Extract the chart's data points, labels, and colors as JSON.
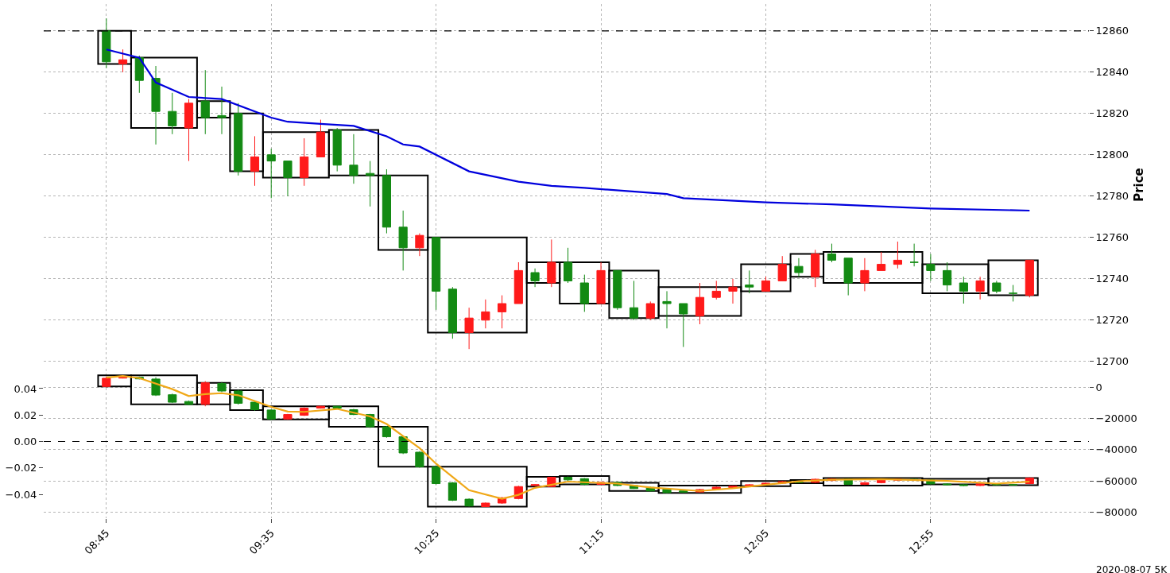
{
  "chart_data": [
    {
      "type": "candlestick",
      "y2label": "Price",
      "tick_labels": "y",
      "grid": true,
      "xlim": [
        "2020-08-07T08:26",
        "2020-08-07T13:43"
      ],
      "xticks": [
        {
          "value": "2020-08-07T08:45",
          "label": null
        },
        {
          "value": "2020-08-07T09:35",
          "label": null
        },
        {
          "value": "2020-08-07T10:25",
          "label": null
        },
        {
          "value": "2020-08-07T11:15",
          "label": null
        },
        {
          "value": "2020-08-07T12:05",
          "label": null
        },
        {
          "value": "2020-08-07T12:55",
          "label": null
        }
      ],
      "y2lim": [
        12698,
        12873
      ],
      "y2ticks": [
        12700,
        12720,
        12740,
        12760,
        12780,
        12800,
        12820,
        12840,
        12860
      ],
      "x": [
        "2020-08-07T08:45",
        "2020-08-07T08:50",
        "2020-08-07T08:55",
        "2020-08-07T09:00",
        "2020-08-07T09:05",
        "2020-08-07T09:10",
        "2020-08-07T09:15",
        "2020-08-07T09:20",
        "2020-08-07T09:25",
        "2020-08-07T09:30",
        "2020-08-07T09:35",
        "2020-08-07T09:40",
        "2020-08-07T09:45",
        "2020-08-07T09:50",
        "2020-08-07T09:55",
        "2020-08-07T10:00",
        "2020-08-07T10:05",
        "2020-08-07T10:10",
        "2020-08-07T10:15",
        "2020-08-07T10:20",
        "2020-08-07T10:25",
        "2020-08-07T10:30",
        "2020-08-07T10:35",
        "2020-08-07T10:40",
        "2020-08-07T10:45",
        "2020-08-07T10:50",
        "2020-08-07T10:55",
        "2020-08-07T11:00",
        "2020-08-07T11:05",
        "2020-08-07T11:10",
        "2020-08-07T11:15",
        "2020-08-07T11:20",
        "2020-08-07T11:25",
        "2020-08-07T11:30",
        "2020-08-07T11:35",
        "2020-08-07T11:40",
        "2020-08-07T11:45",
        "2020-08-07T11:50",
        "2020-08-07T11:55",
        "2020-08-07T12:00",
        "2020-08-07T12:05",
        "2020-08-07T12:10",
        "2020-08-07T12:15",
        "2020-08-07T12:20",
        "2020-08-07T12:25",
        "2020-08-07T12:30",
        "2020-08-07T12:35",
        "2020-08-07T12:40",
        "2020-08-07T12:45",
        "2020-08-07T12:50",
        "2020-08-07T12:55",
        "2020-08-07T13:00",
        "2020-08-07T13:05",
        "2020-08-07T13:10",
        "2020-08-07T13:15",
        "2020-08-07T13:20",
        "2020-08-07T13:25"
      ],
      "series": [
        {
          "type": "bar",
          "axis": "y2",
          "color": "#000000",
          "x": [
            "2020-08-07T08:47:30",
            "2020-08-07T09:02:30",
            "2020-08-07T09:17:30",
            "2020-08-07T09:27:30",
            "2020-08-07T09:42:30",
            "2020-08-07T10:00",
            "2020-08-07T10:15",
            "2020-08-07T10:37:30",
            "2020-08-07T10:57:30",
            "2020-08-07T11:10",
            "2020-08-07T11:25",
            "2020-08-07T11:45",
            "2020-08-07T12:05",
            "2020-08-07T12:17:30",
            "2020-08-07T12:37:30",
            "2020-08-07T13:02:30",
            "2020-08-07T13:20"
          ],
          "base": [
            12844,
            12813,
            12818,
            12792,
            12789,
            12790,
            12754,
            12714,
            12738,
            12728,
            12721,
            12722,
            12734,
            12741,
            12738,
            12733,
            12732
          ],
          "values": [
            16,
            34,
            8,
            28,
            22,
            22,
            36,
            46,
            10,
            20,
            23,
            14,
            13,
            11,
            15,
            14,
            17
          ]
        },
        {
          "axis": "y2",
          "colors": [
            "#138a13",
            "#ff1a1a",
            "#138a13",
            "#138a13",
            "#138a13",
            "#ff1a1a",
            "#138a13",
            "#138a13",
            "#138a13",
            "#ff1a1a",
            "#138a13",
            "#138a13",
            "#ff1a1a",
            "#ff1a1a",
            "#138a13",
            "#138a13",
            "#138a13",
            "#138a13",
            "#138a13",
            "#ff1a1a",
            "#138a13",
            "#138a13",
            "#ff1a1a",
            "#ff1a1a",
            "#ff1a1a",
            "#ff1a1a",
            "#138a13",
            "#ff1a1a",
            "#138a13",
            "#138a13",
            "#ff1a1a",
            "#138a13",
            "#138a13",
            "#ff1a1a",
            "#138a13",
            "#138a13",
            "#ff1a1a",
            "#ff1a1a",
            "#ff1a1a",
            "#138a13",
            "#ff1a1a",
            "#ff1a1a",
            "#138a13",
            "#ff1a1a",
            "#138a13",
            "#138a13",
            "#ff1a1a",
            "#ff1a1a",
            "#ff1a1a",
            "#138a13",
            "#138a13",
            "#138a13",
            "#138a13",
            "#ff1a1a",
            "#138a13",
            "#138a13",
            "#ff1a1a"
          ],
          "ohlc": [
            [
              12860,
              12866,
              12842,
              12845
            ],
            [
              12844,
              12851,
              12840,
              12846
            ],
            [
              12847,
              12848,
              12830,
              12836
            ],
            [
              12837,
              12843,
              12805,
              12821
            ],
            [
              12821,
              12830,
              12810,
              12814
            ],
            [
              12813,
              12827,
              12797,
              12825
            ],
            [
              12826,
              12841,
              12810,
              12818
            ],
            [
              12819,
              12833,
              12810,
              12818
            ],
            [
              12820,
              12825,
              12790,
              12792
            ],
            [
              12792,
              12809,
              12785,
              12799
            ],
            [
              12800,
              12803,
              12779,
              12797
            ],
            [
              12797,
              12797,
              12780,
              12789
            ],
            [
              12789,
              12808,
              12785,
              12799
            ],
            [
              12799,
              12817,
              12799,
              12811
            ],
            [
              12812,
              12813,
              12792,
              12795
            ],
            [
              12795,
              12810,
              12786,
              12790
            ],
            [
              12791,
              12797,
              12775,
              12790
            ],
            [
              12790,
              12793,
              12762,
              12765
            ],
            [
              12765,
              12773,
              12744,
              12755
            ],
            [
              12755,
              12762,
              12751,
              12761
            ],
            [
              12760,
              12760,
              12725,
              12734
            ],
            [
              12735,
              12736,
              12711,
              12714
            ],
            [
              12714,
              12726,
              12706,
              12721
            ],
            [
              12720,
              12730,
              12716,
              12724
            ],
            [
              12724,
              12732,
              12716,
              12728
            ],
            [
              12728,
              12748,
              12728,
              12744
            ],
            [
              12743,
              12745,
              12736,
              12739
            ],
            [
              12738,
              12759,
              12736,
              12748
            ],
            [
              12748,
              12755,
              12738,
              12739
            ],
            [
              12738,
              12742,
              12724,
              12728
            ],
            [
              12728,
              12748,
              12728,
              12744
            ],
            [
              12744,
              12744,
              12725,
              12726
            ],
            [
              12726,
              12739,
              12720,
              12721
            ],
            [
              12721,
              12729,
              12720,
              12728
            ],
            [
              12729,
              12734,
              12716,
              12728
            ],
            [
              12728,
              12728,
              12707,
              12723
            ],
            [
              12722,
              12738,
              12718,
              12731
            ],
            [
              12731,
              12739,
              12730,
              12734
            ],
            [
              12734,
              12740,
              12728,
              12736
            ],
            [
              12737,
              12744,
              12733,
              12736
            ],
            [
              12734,
              12741,
              12734,
              12739
            ],
            [
              12739,
              12751,
              12739,
              12747
            ],
            [
              12746,
              12750,
              12741,
              12743
            ],
            [
              12741,
              12754,
              12736,
              12752
            ],
            [
              12752,
              12757,
              12748,
              12749
            ],
            [
              12750,
              12750,
              12732,
              12738
            ],
            [
              12738,
              12750,
              12734,
              12744
            ],
            [
              12744,
              12753,
              12744,
              12747
            ],
            [
              12747,
              12758,
              12745,
              12749
            ],
            [
              12748,
              12757,
              12746,
              12748
            ],
            [
              12747,
              12752,
              12739,
              12744
            ],
            [
              12744,
              12748,
              12734,
              12737
            ],
            [
              12738,
              12741,
              12728,
              12734
            ],
            [
              12734,
              12741,
              12730,
              12739
            ],
            [
              12738,
              12739,
              12733,
              12734
            ],
            [
              12733,
              12737,
              12729,
              12733
            ],
            [
              12732,
              12749,
              12731,
              12749
            ]
          ]
        },
        {
          "type": "line",
          "axis": "y2",
          "color": "#0000dd",
          "x": [
            "2020-08-07T08:45",
            "2020-08-07T08:55",
            "2020-08-07T09:00",
            "2020-08-07T09:10",
            "2020-08-07T09:20",
            "2020-08-07T09:35",
            "2020-08-07T09:40",
            "2020-08-07T09:50",
            "2020-08-07T10:00",
            "2020-08-07T10:10",
            "2020-08-07T10:15",
            "2020-08-07T10:20",
            "2020-08-07T10:35",
            "2020-08-07T10:50",
            "2020-08-07T11:00",
            "2020-08-07T11:10",
            "2020-08-07T11:35",
            "2020-08-07T11:40",
            "2020-08-07T12:05",
            "2020-08-07T12:25",
            "2020-08-07T12:55",
            "2020-08-07T13:25"
          ],
          "values": [
            12851,
            12847,
            12835,
            12828,
            12827,
            12818,
            12816,
            12815,
            12814,
            12809,
            12805,
            12804,
            12792,
            12787,
            12785,
            12784,
            12781,
            12779,
            12777,
            12776,
            12774,
            12773
          ]
        }
      ],
      "ref_lines": [
        {
          "axis": "y2",
          "value": 12860,
          "color": "#000000",
          "line_style": "dashed"
        }
      ]
    },
    {
      "type": "candlestick",
      "grid": true,
      "xlim": [
        "2020-08-07T08:26",
        "2020-08-07T13:43"
      ],
      "xticks": [
        {
          "value": "2020-08-07T08:45",
          "label": "08:45"
        },
        {
          "value": "2020-08-07T09:35",
          "label": "09:35"
        },
        {
          "value": "2020-08-07T10:25",
          "label": "10:25"
        },
        {
          "value": "2020-08-07T11:15",
          "label": "11:15"
        },
        {
          "value": "2020-08-07T12:05",
          "label": "12:05"
        },
        {
          "value": "2020-08-07T12:55",
          "label": "12:55"
        }
      ],
      "ylim": [
        -0.058,
        0.055
      ],
      "yticks": [
        {
          "value": -0.04,
          "label": "−0.04"
        },
        {
          "value": -0.02,
          "label": "−0.02"
        },
        {
          "value": 0,
          "label": "0.00"
        },
        0.02,
        0.04
      ],
      "y2lim": [
        -84000,
        12000
      ],
      "y2ticks": [
        {
          "value": -80000,
          "label": "−80000"
        },
        {
          "value": -60000,
          "label": "−60000"
        },
        {
          "value": -40000,
          "label": "−40000"
        },
        {
          "value": -20000,
          "label": "−20000"
        },
        0
      ],
      "annotations": [
        "2020-08-07 5K"
      ],
      "x": [
        "2020-08-07T08:45",
        "2020-08-07T08:50",
        "2020-08-07T08:55",
        "2020-08-07T09:00",
        "2020-08-07T09:05",
        "2020-08-07T09:10",
        "2020-08-07T09:15",
        "2020-08-07T09:20",
        "2020-08-07T09:25",
        "2020-08-07T09:30",
        "2020-08-07T09:35",
        "2020-08-07T09:40",
        "2020-08-07T09:45",
        "2020-08-07T09:50",
        "2020-08-07T09:55",
        "2020-08-07T10:00",
        "2020-08-07T10:05",
        "2020-08-07T10:10",
        "2020-08-07T10:15",
        "2020-08-07T10:20",
        "2020-08-07T10:25",
        "2020-08-07T10:30",
        "2020-08-07T10:35",
        "2020-08-07T10:40",
        "2020-08-07T10:45",
        "2020-08-07T10:50",
        "2020-08-07T10:55",
        "2020-08-07T11:00",
        "2020-08-07T11:05",
        "2020-08-07T11:10",
        "2020-08-07T11:15",
        "2020-08-07T11:20",
        "2020-08-07T11:25",
        "2020-08-07T11:30",
        "2020-08-07T11:35",
        "2020-08-07T11:40",
        "2020-08-07T11:45",
        "2020-08-07T11:50",
        "2020-08-07T11:55",
        "2020-08-07T12:00",
        "2020-08-07T12:05",
        "2020-08-07T12:10",
        "2020-08-07T12:15",
        "2020-08-07T12:20",
        "2020-08-07T12:25",
        "2020-08-07T12:30",
        "2020-08-07T12:35",
        "2020-08-07T12:40",
        "2020-08-07T12:45",
        "2020-08-07T12:50",
        "2020-08-07T12:55",
        "2020-08-07T13:00",
        "2020-08-07T13:05",
        "2020-08-07T13:10",
        "2020-08-07T13:15",
        "2020-08-07T13:20",
        "2020-08-07T13:25"
      ],
      "series": [
        {
          "type": "bar",
          "axis": "y2",
          "color": "#000000",
          "x": [
            "2020-08-07T08:47:30",
            "2020-08-07T09:02:30",
            "2020-08-07T09:17:30",
            "2020-08-07T09:27:30",
            "2020-08-07T09:42:30",
            "2020-08-07T10:00",
            "2020-08-07T10:15",
            "2020-08-07T10:37:30",
            "2020-08-07T10:57:30",
            "2020-08-07T11:10",
            "2020-08-07T11:25",
            "2020-08-07T11:45",
            "2020-08-07T12:05",
            "2020-08-07T12:17:30",
            "2020-08-07T12:37:30",
            "2020-08-07T13:02:30",
            "2020-08-07T13:20"
          ],
          "base": [
            600,
            -10900,
            -10900,
            -14500,
            -20500,
            -25300,
            -51000,
            -76600,
            -63700,
            -62300,
            -66500,
            -67800,
            -63500,
            -61500,
            -63000,
            -62300,
            -62800
          ],
          "values": [
            7200,
            18700,
            13900,
            12700,
            8400,
            13200,
            25700,
            25600,
            6300,
            5400,
            5200,
            4800,
            3400,
            2000,
            4800,
            3600,
            4600
          ]
        },
        {
          "axis": "y2",
          "colors": [
            "#ff1a1a",
            "#ff1a1a",
            "#138a13",
            "#138a13",
            "#138a13",
            "#138a13",
            "#ff1a1a",
            "#138a13",
            "#138a13",
            "#138a13",
            "#138a13",
            "#ff1a1a",
            "#ff1a1a",
            "#ff1a1a",
            "#138a13",
            "#138a13",
            "#138a13",
            "#138a13",
            "#138a13",
            "#138a13",
            "#138a13",
            "#138a13",
            "#138a13",
            "#ff1a1a",
            "#ff1a1a",
            "#ff1a1a",
            "#ff1a1a",
            "#ff1a1a",
            "#138a13",
            "#138a13",
            "#ff1a1a",
            "#138a13",
            "#138a13",
            "#138a13",
            "#138a13",
            "#138a13",
            "#ff1a1a",
            "#ff1a1a",
            "#ff1a1a",
            "#ff1a1a",
            "#ff1a1a",
            "#ff1a1a",
            "#138a13",
            "#ff1a1a",
            "#ff1a1a",
            "#138a13",
            "#ff1a1a",
            "#ff1a1a",
            "#ff1a1a",
            "#138a13",
            "#138a13",
            "#138a13",
            "#138a13",
            "#ff1a1a",
            "#138a13",
            "#138a13",
            "#ff1a1a"
          ],
          "ohlc": [
            [
              600,
              7000,
              0,
              5900
            ],
            [
              6000,
              7000,
              5800,
              6500
            ],
            [
              6500,
              7000,
              5200,
              5500
            ],
            [
              5400,
              6500,
              -5500,
              -4900
            ],
            [
              -4700,
              -4000,
              -10000,
              -9500
            ],
            [
              -9000,
              -8500,
              -11500,
              -10900
            ],
            [
              -10900,
              4000,
              -12100,
              3000
            ],
            [
              2500,
              3500,
              -3000,
              -2300
            ],
            [
              -2300,
              -1500,
              -11000,
              -10200
            ],
            [
              -9500,
              -9000,
              -15000,
              -14300
            ],
            [
              -14500,
              -14000,
              -21000,
              -20300
            ],
            [
              -20300,
              -17000,
              -20800,
              -17400
            ],
            [
              -17900,
              -12800,
              -18300,
              -13300
            ],
            [
              -13300,
              -11800,
              -13600,
              -12100
            ],
            [
              -12100,
              -11800,
              -13600,
              -13300
            ],
            [
              -14300,
              -13800,
              -17800,
              -17400
            ],
            [
              -17400,
              -17000,
              -26000,
              -25300
            ],
            [
              -25300,
              -24800,
              -32300,
              -31700
            ],
            [
              -31700,
              -31000,
              -42800,
              -42100
            ],
            [
              -41600,
              -41000,
              -51600,
              -51000
            ],
            [
              -51000,
              -50500,
              -62400,
              -61800
            ],
            [
              -61300,
              -60800,
              -73000,
              -72500
            ],
            [
              -71800,
              -71300,
              -76600,
              -76200
            ],
            [
              -76600,
              -73900,
              -76900,
              -74300
            ],
            [
              -74300,
              -70400,
              -74800,
              -70900
            ],
            [
              -71400,
              -63200,
              -71900,
              -63700
            ],
            [
              -63000,
              -62200,
              -63400,
              -62500
            ],
            [
              -63700,
              -57400,
              -64000,
              -57700
            ],
            [
              -57700,
              -57200,
              -60000,
              -59400
            ],
            [
              -58600,
              -58200,
              -62800,
              -62300
            ],
            [
              -62300,
              -60600,
              -62600,
              -61000
            ],
            [
              -61000,
              -60600,
              -63400,
              -63000
            ],
            [
              -63000,
              -62600,
              -65200,
              -65000
            ],
            [
              -64200,
              -63800,
              -66900,
              -66500
            ],
            [
              -65300,
              -64900,
              -68000,
              -67600
            ],
            [
              -66500,
              -66100,
              -67700,
              -67300
            ],
            [
              -67200,
              -65200,
              -67600,
              -65600
            ],
            [
              -65400,
              -63700,
              -65800,
              -64100
            ],
            [
              -64500,
              -63000,
              -64900,
              -63400
            ],
            [
              -63400,
              -62100,
              -63800,
              -62500
            ],
            [
              -62500,
              -61100,
              -62900,
              -61500
            ],
            [
              -61500,
              -60100,
              -61900,
              -60500
            ],
            [
              -60500,
              -60100,
              -61400,
              -61000
            ],
            [
              -61000,
              -58600,
              -61400,
              -59000
            ],
            [
              -59800,
              -58400,
              -60200,
              -58800
            ],
            [
              -58800,
              -58400,
              -62700,
              -62300
            ],
            [
              -62300,
              -60800,
              -62700,
              -61200
            ],
            [
              -61200,
              -59200,
              -61600,
              -59600
            ],
            [
              -59600,
              -58600,
              -60000,
              -59000
            ],
            [
              -59000,
              -58600,
              -59900,
              -59500
            ],
            [
              -59500,
              -59100,
              -62400,
              -62000
            ],
            [
              -62000,
              -61600,
              -62900,
              -62500
            ],
            [
              -62500,
              -62100,
              -63400,
              -63000
            ],
            [
              -63000,
              -61600,
              -63400,
              -62000
            ],
            [
              -62000,
              -61600,
              -62900,
              -62500
            ],
            [
              -62500,
              -62100,
              -63000,
              -62600
            ],
            [
              -61800,
              -57800,
              -62200,
              -58200
            ]
          ]
        },
        {
          "type": "line",
          "axis": "y2",
          "color": "#f0a818",
          "x": [
            "2020-08-07T08:45",
            "2020-08-07T08:50",
            "2020-08-07T08:55",
            "2020-08-07T09:05",
            "2020-08-07T09:10",
            "2020-08-07T09:15",
            "2020-08-07T09:20",
            "2020-08-07T09:25",
            "2020-08-07T09:35",
            "2020-08-07T09:40",
            "2020-08-07T09:45",
            "2020-08-07T09:55",
            "2020-08-07T10:05",
            "2020-08-07T10:10",
            "2020-08-07T10:20",
            "2020-08-07T10:25",
            "2020-08-07T10:30",
            "2020-08-07T10:35",
            "2020-08-07T10:45",
            "2020-08-07T10:50",
            "2020-08-07T10:55",
            "2020-08-07T11:05",
            "2020-08-07T11:20",
            "2020-08-07T11:30",
            "2020-08-07T11:45",
            "2020-08-07T11:55",
            "2020-08-07T12:15",
            "2020-08-07T12:25",
            "2020-08-07T12:40",
            "2020-08-07T13:00",
            "2020-08-07T13:15",
            "2020-08-07T13:25"
          ],
          "values": [
            6300,
            7300,
            6000,
            -1100,
            -5500,
            -4300,
            -3700,
            -5000,
            -12500,
            -15500,
            -15700,
            -13800,
            -18600,
            -23500,
            -39000,
            -49000,
            -57500,
            -66000,
            -71500,
            -69000,
            -64500,
            -60500,
            -61800,
            -64300,
            -66500,
            -64800,
            -60300,
            -59300,
            -58900,
            -60100,
            -61800,
            -60500
          ]
        }
      ],
      "ref_lines": [
        {
          "axis": "y",
          "value": 0,
          "color": "#000000",
          "line_style": "dashed"
        }
      ]
    }
  ]
}
